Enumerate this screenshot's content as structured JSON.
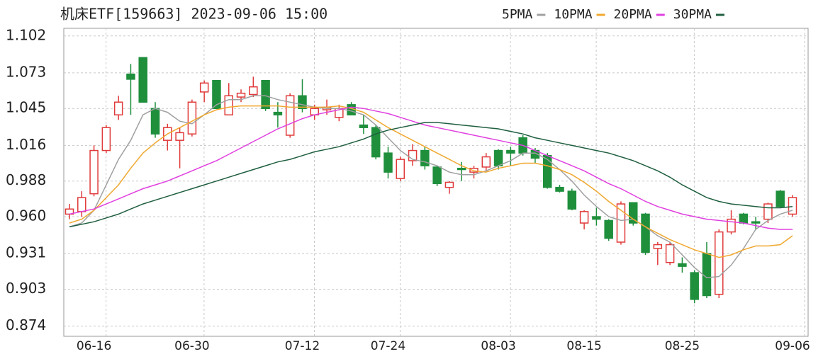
{
  "chart_data": {
    "type": "candlestick",
    "title": "机床ETF[159663] 2023-09-06 15:00",
    "categories": [
      null,
      null,
      "06-16",
      null,
      null,
      null,
      null,
      null,
      null,
      null,
      "06-30",
      null,
      null,
      null,
      null,
      null,
      null,
      null,
      null,
      "07-12",
      null,
      null,
      null,
      null,
      null,
      null,
      "07-24",
      null,
      null,
      null,
      null,
      null,
      null,
      null,
      null,
      "08-03",
      null,
      null,
      null,
      null,
      null,
      null,
      "08-15",
      null,
      null,
      null,
      null,
      null,
      null,
      null,
      "08-25",
      null,
      null,
      null,
      null,
      null,
      null,
      null,
      null,
      "09-06"
    ],
    "open": [
      0.962,
      0.964,
      0.978,
      1.012,
      1.04,
      1.072,
      1.085,
      1.045,
      1.02,
      1.02,
      1.025,
      1.058,
      1.067,
      1.04,
      1.054,
      1.056,
      1.067,
      1.042,
      1.024,
      1.055,
      1.04,
      1.044,
      1.038,
      1.048,
      1.032,
      1.03,
      1.01,
      0.99,
      1.004,
      1.012,
      0.999,
      0.983,
      0.998,
      0.995,
      0.999,
      1.012,
      1.012,
      1.022,
      1.012,
      1.008,
      0.983,
      0.98,
      0.955,
      0.96,
      0.957,
      0.94,
      0.971,
      0.962,
      0.935,
      0.924,
      0.923,
      0.916,
      0.931,
      0.899,
      0.948,
      0.962,
      0.956,
      0.958,
      0.98,
      0.962
    ],
    "high": [
      0.97,
      0.98,
      1.016,
      1.032,
      1.055,
      1.08,
      1.085,
      1.05,
      1.033,
      1.03,
      1.052,
      1.067,
      1.067,
      1.065,
      1.06,
      1.07,
      1.067,
      1.05,
      1.057,
      1.068,
      1.048,
      1.052,
      1.048,
      1.05,
      1.04,
      1.032,
      1.015,
      1.007,
      1.017,
      1.015,
      1.0,
      0.988,
      1.003,
      1.0,
      1.01,
      1.013,
      1.015,
      1.024,
      1.014,
      1.01,
      0.985,
      0.982,
      0.965,
      0.967,
      0.958,
      0.972,
      0.971,
      0.963,
      0.94,
      0.94,
      0.928,
      0.918,
      0.94,
      0.95,
      0.965,
      0.963,
      0.96,
      0.971,
      0.981,
      0.977
    ],
    "low": [
      0.958,
      0.96,
      0.976,
      1.01,
      1.036,
      1.04,
      1.05,
      1.022,
      1.012,
      0.998,
      1.023,
      1.05,
      1.045,
      1.04,
      1.05,
      1.054,
      1.043,
      1.03,
      1.022,
      1.042,
      1.036,
      1.04,
      1.035,
      1.04,
      1.025,
      1.005,
      0.99,
      0.988,
      1.0,
      0.997,
      0.984,
      0.978,
      0.988,
      0.99,
      0.996,
      0.997,
      1.0,
      1.008,
      1.002,
      0.982,
      0.979,
      0.965,
      0.95,
      0.953,
      0.941,
      0.938,
      0.953,
      0.93,
      0.922,
      0.922,
      0.916,
      0.892,
      0.896,
      0.896,
      0.946,
      0.954,
      0.95,
      0.955,
      0.967,
      0.96
    ],
    "close": [
      0.966,
      0.975,
      1.012,
      1.03,
      1.05,
      1.068,
      1.05,
      1.025,
      1.03,
      1.026,
      1.05,
      1.065,
      1.045,
      1.055,
      1.057,
      1.062,
      1.045,
      1.04,
      1.055,
      1.045,
      1.045,
      1.046,
      1.045,
      1.04,
      1.03,
      1.007,
      0.995,
      1.005,
      1.012,
      1.0,
      0.986,
      0.987,
      0.997,
      0.998,
      1.007,
      1.0,
      1.01,
      1.01,
      1.006,
      0.983,
      0.98,
      0.966,
      0.964,
      0.958,
      0.943,
      0.97,
      0.955,
      0.932,
      0.938,
      0.938,
      0.921,
      0.895,
      0.898,
      0.948,
      0.958,
      0.955,
      0.955,
      0.97,
      0.968,
      0.975
    ],
    "up_color": "#e03a3a",
    "down_color": "#1f8f3c",
    "ma": [
      {
        "name": "5PMA",
        "color": "#a0a0a0",
        "values": [
          0.952,
          0.955,
          0.965,
          0.985,
          1.005,
          1.02,
          1.04,
          1.045,
          1.042,
          1.035,
          1.033,
          1.04,
          1.048,
          1.052,
          1.052,
          1.055,
          1.055,
          1.052,
          1.05,
          1.048,
          1.046,
          1.045,
          1.045,
          1.043,
          1.04,
          1.032,
          1.022,
          1.012,
          1.005,
          1.003,
          1.0,
          0.995,
          0.993,
          0.993,
          0.996,
          1.0,
          1.004,
          1.01,
          1.01,
          1.005,
          0.997,
          0.988,
          0.977,
          0.968,
          0.96,
          0.957,
          0.958,
          0.952,
          0.945,
          0.94,
          0.93,
          0.92,
          0.912,
          0.913,
          0.922,
          0.935,
          0.95,
          0.957,
          0.962,
          0.965
        ]
      },
      {
        "name": "10PMA",
        "color": "#f0a830",
        "values": [
          0.955,
          0.958,
          0.965,
          0.975,
          0.985,
          0.998,
          1.01,
          1.018,
          1.025,
          1.03,
          1.035,
          1.04,
          1.044,
          1.046,
          1.047,
          1.047,
          1.047,
          1.047,
          1.046,
          1.046,
          1.046,
          1.046,
          1.047,
          1.045,
          1.042,
          1.036,
          1.03,
          1.025,
          1.02,
          1.015,
          1.01,
          1.005,
          1.0,
          0.996,
          0.995,
          0.998,
          1.0,
          1.002,
          1.002,
          1.0,
          0.997,
          0.993,
          0.987,
          0.98,
          0.972,
          0.965,
          0.958,
          0.952,
          0.947,
          0.942,
          0.938,
          0.934,
          0.931,
          0.928,
          0.93,
          0.934,
          0.937,
          0.937,
          0.938,
          0.945
        ]
      },
      {
        "name": "20PMA",
        "color": "#e040e0",
        "values": [
          0.962,
          0.964,
          0.966,
          0.97,
          0.974,
          0.978,
          0.982,
          0.985,
          0.988,
          0.992,
          0.996,
          1.0,
          1.004,
          1.009,
          1.014,
          1.019,
          1.024,
          1.029,
          1.033,
          1.037,
          1.04,
          1.042,
          1.044,
          1.046,
          1.045,
          1.043,
          1.041,
          1.038,
          1.035,
          1.032,
          1.03,
          1.028,
          1.026,
          1.024,
          1.022,
          1.02,
          1.018,
          1.016,
          1.012,
          1.008,
          1.004,
          1.0,
          0.996,
          0.991,
          0.986,
          0.982,
          0.977,
          0.972,
          0.968,
          0.965,
          0.962,
          0.96,
          0.958,
          0.957,
          0.956,
          0.955,
          0.953,
          0.951,
          0.95,
          0.95
        ]
      },
      {
        "name": "30PMA",
        "color": "#1f5f40",
        "values": [
          0.952,
          0.954,
          0.956,
          0.959,
          0.962,
          0.966,
          0.97,
          0.973,
          0.976,
          0.979,
          0.982,
          0.985,
          0.988,
          0.991,
          0.994,
          0.997,
          1.0,
          1.003,
          1.005,
          1.008,
          1.011,
          1.013,
          1.015,
          1.018,
          1.021,
          1.025,
          1.028,
          1.03,
          1.032,
          1.034,
          1.034,
          1.033,
          1.032,
          1.031,
          1.03,
          1.029,
          1.027,
          1.025,
          1.022,
          1.02,
          1.018,
          1.016,
          1.014,
          1.012,
          1.01,
          1.007,
          1.004,
          1.0,
          0.996,
          0.991,
          0.985,
          0.98,
          0.975,
          0.972,
          0.97,
          0.969,
          0.968,
          0.967,
          0.967,
          0.968
        ]
      }
    ],
    "ylim": [
      0.866,
      1.108
    ],
    "yticks": [
      0.874,
      0.903,
      0.931,
      {
        "value": 0.96,
        "label": "0.960"
      },
      0.988,
      1.016,
      1.045,
      1.073,
      1.102
    ],
    "grid": true
  }
}
